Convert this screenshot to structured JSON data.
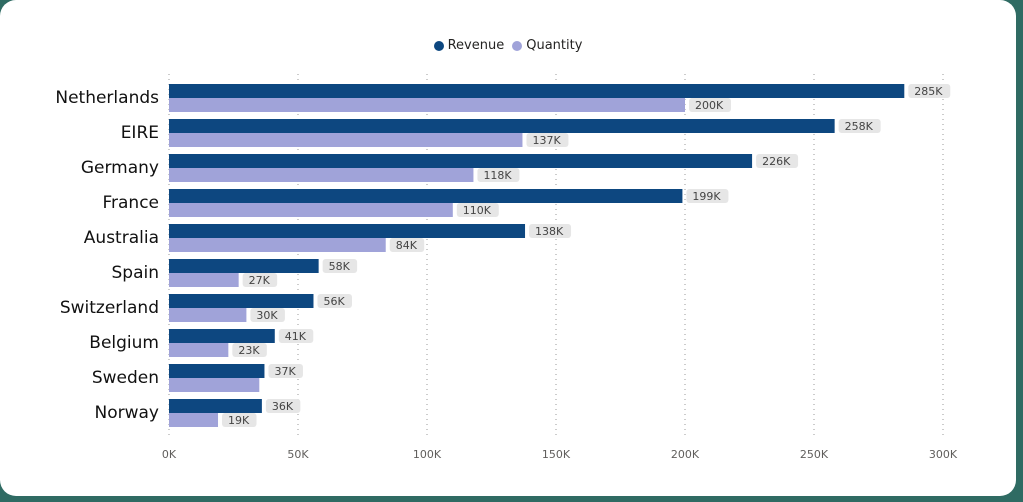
{
  "chart_data": {
    "type": "bar",
    "orientation": "horizontal",
    "categories": [
      "Netherlands",
      "EIRE",
      "Germany",
      "France",
      "Australia",
      "Spain",
      "Switzerland",
      "Belgium",
      "Sweden",
      "Norway"
    ],
    "series": [
      {
        "name": "Revenue",
        "color": "#0d4780",
        "values": [
          285000,
          258000,
          226000,
          199000,
          138000,
          58000,
          56000,
          41000,
          37000,
          36000
        ],
        "labels": [
          "285K",
          "258K",
          "226K",
          "199K",
          "138K",
          "58K",
          "56K",
          "41K",
          "37K",
          "36K"
        ]
      },
      {
        "name": "Quantity",
        "color": "#a0a3d9",
        "values": [
          200000,
          137000,
          118000,
          110000,
          84000,
          27000,
          30000,
          23000,
          35000,
          19000
        ],
        "labels": [
          "200K",
          "137K",
          "118K",
          "110K",
          "84K",
          "27K",
          "30K",
          "23K",
          "",
          "19K"
        ]
      }
    ],
    "xlim": [
      0,
      300000
    ],
    "xticks": [
      0,
      50000,
      100000,
      150000,
      200000,
      250000,
      300000
    ],
    "xtick_labels": [
      "0K",
      "50K",
      "100K",
      "150K",
      "200K",
      "250K",
      "300K"
    ],
    "grid": "vertical-dotted",
    "legend_position": "top-center",
    "title": "",
    "xlabel": "",
    "ylabel": ""
  }
}
